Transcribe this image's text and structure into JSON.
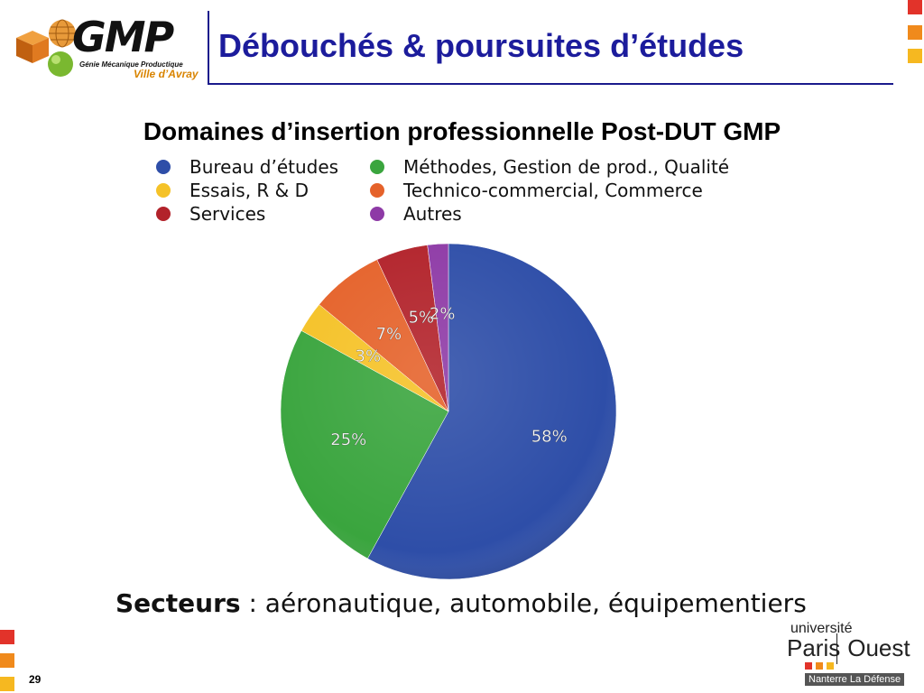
{
  "header": {
    "logo_text": "GMP",
    "logo_sub1": "Génie Mécanique Productique",
    "logo_sub2": "Ville d’Avray",
    "title": "Débouchés & poursuites d’études"
  },
  "chart_data": {
    "type": "pie",
    "title": "Domaines d’insertion professionnelle Post-DUT GMP",
    "legend_position": "top",
    "slices": [
      {
        "name": "Bureau d’études",
        "value": 58,
        "label": "58%",
        "color": "#2e4ea8"
      },
      {
        "name": "Méthodes, Gestion de prod., Qualité",
        "value": 25,
        "label": "25%",
        "color": "#3aa53e"
      },
      {
        "name": "Essais, R & D",
        "value": 3,
        "label": "3%",
        "color": "#f5c228"
      },
      {
        "name": "Technico-commercial, Commerce",
        "value": 7,
        "label": "7%",
        "color": "#e5622a"
      },
      {
        "name": "Services",
        "value": 5,
        "label": "5%",
        "color": "#b2222a"
      },
      {
        "name": "Autres",
        "value": 2,
        "label": "2%",
        "color": "#8e3aa6"
      }
    ]
  },
  "footer": {
    "sectors_label": "Secteurs",
    "sectors_text": " : aéronautique, automobile, équipementiers",
    "page_number": "29",
    "univ_small": "université",
    "univ_left": "Paris",
    "univ_right": "Ouest",
    "univ_bottom": "Nanterre La Défense"
  },
  "colors": {
    "title_blue": "#1c1c9c",
    "accent_orange": "#f08a1c",
    "accent_red": "#e2332a"
  }
}
